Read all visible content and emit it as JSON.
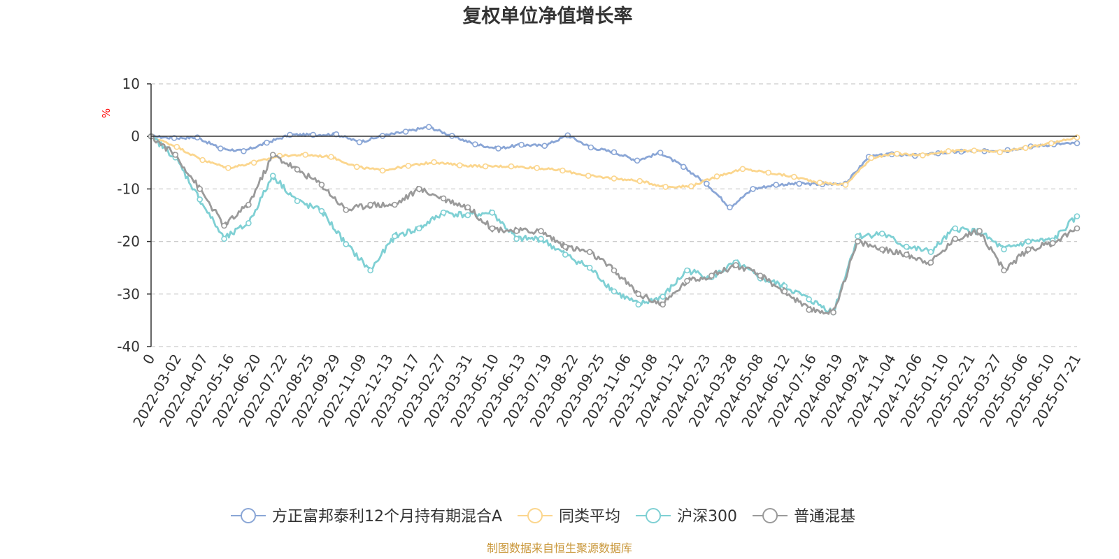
{
  "chart_data": {
    "type": "line",
    "title": "复权单位净值增长率",
    "y_unit": "%",
    "ylim": [
      -40,
      10
    ],
    "y_ticks": [
      "10",
      "0",
      "-10",
      "-20",
      "-30",
      "-40"
    ],
    "grid": true,
    "legend_position": "bottom",
    "x_tick_labels": [
      "0",
      "2022-03-02",
      "2022-04-07",
      "2022-05-16",
      "2022-06-20",
      "2022-07-22",
      "2022-08-25",
      "2022-09-29",
      "2022-11-09",
      "2022-12-13",
      "2023-01-17",
      "2023-02-27",
      "2023-03-31",
      "2023-05-10",
      "2023-06-13",
      "2023-07-19",
      "2023-08-22",
      "2023-09-25",
      "2023-11-06",
      "2023-12-08",
      "2024-01-12",
      "2024-02-23",
      "2024-03-28",
      "2024-05-08",
      "2024-06-12",
      "2024-07-16",
      "2024-08-19",
      "2024-09-24",
      "2024-11-04",
      "2024-12-06",
      "2025-01-10",
      "2025-02-21",
      "2025-03-27",
      "2025-05-06",
      "2025-06-10",
      "2025-07-21"
    ],
    "series": [
      {
        "name": "方正富邦泰利12个月持有期混合A",
        "color": "#8aa6d6",
        "values": [
          0,
          -0.3,
          -0.2,
          -2.3,
          -2.8,
          -1.2,
          0.3,
          0.3,
          0.4,
          -1.1,
          0.1,
          0.9,
          1.8,
          0.1,
          -1.5,
          -2.3,
          -1.6,
          -1.8,
          0.2,
          -2.1,
          -3.0,
          -4.6,
          -3.1,
          -5.8,
          -9.0,
          -13.5,
          -10.0,
          -9.2,
          -9.0,
          -9.1,
          -9.0,
          -3.9,
          -3.4,
          -3.7,
          -3.2,
          -2.9,
          -2.8,
          -2.6,
          -1.9,
          -1.5,
          -1.3
        ]
      },
      {
        "name": "同类平均",
        "color": "#fbd68e",
        "values": [
          0,
          -2.0,
          -4.5,
          -6.0,
          -5.0,
          -3.7,
          -3.5,
          -3.9,
          -5.8,
          -6.5,
          -5.6,
          -4.9,
          -5.5,
          -5.7,
          -5.7,
          -6.0,
          -6.5,
          -7.5,
          -8.0,
          -8.5,
          -9.6,
          -9.5,
          -7.6,
          -6.2,
          -6.9,
          -7.7,
          -8.8,
          -9.2,
          -4.1,
          -3.3,
          -3.6,
          -2.8,
          -2.7,
          -3.0,
          -2.2,
          -1.3,
          -0.2
        ]
      },
      {
        "name": "沪深300",
        "color": "#7fd0d4",
        "values": [
          0,
          -4.0,
          -12.0,
          -19.5,
          -16.5,
          -7.5,
          -12.3,
          -14.2,
          -20.5,
          -25.5,
          -19.0,
          -17.5,
          -14.5,
          -15.0,
          -14.5,
          -19.5,
          -19.5,
          -22.5,
          -25.0,
          -29.5,
          -32.0,
          -30.5,
          -25.5,
          -26.8,
          -24.0,
          -27.0,
          -28.5,
          -31.0,
          -33.5,
          -19.0,
          -18.5,
          -21.0,
          -22.0,
          -17.5,
          -18.2,
          -21.5,
          -20.0,
          -19.8,
          -15.2
        ]
      },
      {
        "name": "普通混基",
        "color": "#9a9a9a",
        "values": [
          0,
          -3.5,
          -10.0,
          -17.0,
          -13.0,
          -3.5,
          -6.3,
          -9.2,
          -14.0,
          -13.0,
          -13.0,
          -10.0,
          -11.8,
          -13.5,
          -17.5,
          -18.0,
          -18.0,
          -21.0,
          -22.0,
          -25.5,
          -30.0,
          -32.0,
          -27.5,
          -26.5,
          -24.5,
          -26.5,
          -29.5,
          -33.0,
          -33.5,
          -20.0,
          -21.5,
          -22.5,
          -24.0,
          -19.5,
          -18.0,
          -25.5,
          -21.5,
          -20.3,
          -17.5
        ]
      }
    ]
  },
  "legend": {
    "items": [
      {
        "label": "方正富邦泰利12个月持有期混合A",
        "color": "#8aa6d6"
      },
      {
        "label": "同类平均",
        "color": "#fbd68e"
      },
      {
        "label": "沪深300",
        "color": "#7fd0d4"
      },
      {
        "label": "普通混基",
        "color": "#9a9a9a"
      }
    ]
  },
  "footer": {
    "source": "制图数据来自恒生聚源数据库"
  }
}
